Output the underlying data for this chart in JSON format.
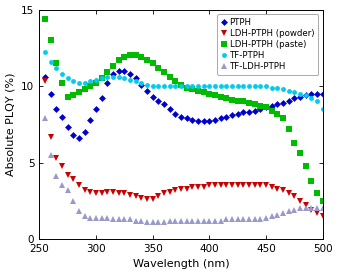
{
  "title": "",
  "xlabel": "Wavelength (nm)",
  "ylabel": "Absolute PLQY (%)",
  "xlim": [
    250,
    500
  ],
  "ylim": [
    0,
    15
  ],
  "yticks": [
    0,
    5,
    10,
    15
  ],
  "xticks": [
    250,
    300,
    350,
    400,
    450,
    500
  ],
  "background_color": "#ffffff",
  "series": {
    "PTPH": {
      "color": "#0000CC",
      "marker": "D",
      "ms": 3.5,
      "x": [
        255,
        260,
        265,
        270,
        275,
        280,
        285,
        290,
        295,
        300,
        305,
        310,
        315,
        320,
        325,
        330,
        335,
        340,
        345,
        350,
        355,
        360,
        365,
        370,
        375,
        380,
        385,
        390,
        395,
        400,
        405,
        410,
        415,
        420,
        425,
        430,
        435,
        440,
        445,
        450,
        455,
        460,
        465,
        470,
        475,
        480,
        485,
        490,
        495,
        500
      ],
      "y": [
        10.6,
        9.5,
        8.5,
        8.0,
        7.3,
        6.8,
        6.6,
        7.0,
        7.8,
        8.5,
        9.2,
        10.2,
        10.8,
        11.0,
        11.0,
        10.8,
        10.5,
        10.1,
        9.7,
        9.3,
        9.0,
        8.8,
        8.5,
        8.2,
        8.0,
        7.9,
        7.8,
        7.7,
        7.7,
        7.7,
        7.8,
        7.9,
        8.0,
        8.1,
        8.2,
        8.3,
        8.3,
        8.4,
        8.5,
        8.6,
        8.7,
        8.8,
        8.9,
        9.0,
        9.2,
        9.3,
        9.4,
        9.5,
        9.5,
        9.5
      ]
    },
    "LDH-PTPH (powder)": {
      "color": "#CC0000",
      "marker": "v",
      "ms": 4.5,
      "x": [
        255,
        260,
        265,
        270,
        275,
        280,
        285,
        290,
        295,
        300,
        305,
        310,
        315,
        320,
        325,
        330,
        335,
        340,
        345,
        350,
        355,
        360,
        365,
        370,
        375,
        380,
        385,
        390,
        395,
        400,
        405,
        410,
        415,
        420,
        425,
        430,
        435,
        440,
        445,
        450,
        455,
        460,
        465,
        470,
        475,
        480,
        485,
        490,
        495,
        500
      ],
      "y": [
        10.3,
        6.7,
        5.3,
        4.8,
        4.2,
        3.9,
        3.5,
        3.2,
        3.1,
        3.0,
        3.0,
        3.1,
        3.1,
        3.0,
        3.0,
        2.9,
        2.8,
        2.7,
        2.6,
        2.6,
        2.8,
        3.0,
        3.1,
        3.2,
        3.3,
        3.3,
        3.4,
        3.4,
        3.4,
        3.5,
        3.5,
        3.5,
        3.5,
        3.5,
        3.5,
        3.5,
        3.5,
        3.5,
        3.5,
        3.5,
        3.4,
        3.3,
        3.2,
        3.0,
        2.8,
        2.5,
        2.2,
        1.9,
        1.7,
        1.5
      ]
    },
    "LDH-PTPH (paste)": {
      "color": "#00BB00",
      "marker": "s",
      "ms": 4.0,
      "x": [
        255,
        260,
        265,
        270,
        275,
        280,
        285,
        290,
        295,
        300,
        305,
        310,
        315,
        320,
        325,
        330,
        335,
        340,
        345,
        350,
        355,
        360,
        365,
        370,
        375,
        380,
        385,
        390,
        395,
        400,
        405,
        410,
        415,
        420,
        425,
        430,
        435,
        440,
        445,
        450,
        455,
        460,
        465,
        470,
        475,
        480,
        485,
        490,
        495,
        500
      ],
      "y": [
        14.4,
        13.0,
        11.5,
        10.2,
        9.3,
        9.4,
        9.6,
        9.8,
        10.0,
        10.2,
        10.5,
        10.9,
        11.3,
        11.7,
        11.9,
        12.0,
        12.0,
        11.9,
        11.7,
        11.5,
        11.2,
        10.9,
        10.6,
        10.3,
        10.1,
        9.9,
        9.8,
        9.7,
        9.6,
        9.5,
        9.4,
        9.3,
        9.2,
        9.1,
        9.0,
        9.0,
        8.9,
        8.8,
        8.7,
        8.6,
        8.4,
        8.2,
        7.9,
        7.2,
        6.3,
        5.6,
        4.8,
        3.8,
        3.0,
        2.5
      ]
    },
    "TF-PTPH": {
      "color": "#00CCEE",
      "marker": "o",
      "ms": 3.5,
      "x": [
        255,
        260,
        265,
        270,
        275,
        280,
        285,
        290,
        295,
        300,
        305,
        310,
        315,
        320,
        325,
        330,
        335,
        340,
        345,
        350,
        355,
        360,
        365,
        370,
        375,
        380,
        385,
        390,
        395,
        400,
        405,
        410,
        415,
        420,
        425,
        430,
        435,
        440,
        445,
        450,
        455,
        460,
        465,
        470,
        475,
        480,
        485,
        490,
        495,
        500
      ],
      "y": [
        12.2,
        11.6,
        11.2,
        10.8,
        10.5,
        10.3,
        10.2,
        10.2,
        10.3,
        10.4,
        10.5,
        10.6,
        10.6,
        10.6,
        10.5,
        10.4,
        10.3,
        10.2,
        10.1,
        10.0,
        10.0,
        10.0,
        10.0,
        10.0,
        10.0,
        10.0,
        10.0,
        10.0,
        10.0,
        10.0,
        10.0,
        10.0,
        10.0,
        10.0,
        10.0,
        10.0,
        10.0,
        10.0,
        10.0,
        10.0,
        9.9,
        9.9,
        9.8,
        9.7,
        9.6,
        9.5,
        9.4,
        9.2,
        9.0,
        8.5
      ]
    },
    "TF-LDH-PTPH": {
      "color": "#9999CC",
      "marker": "^",
      "ms": 4.0,
      "x": [
        255,
        260,
        265,
        270,
        275,
        280,
        285,
        290,
        295,
        300,
        305,
        310,
        315,
        320,
        325,
        330,
        335,
        340,
        345,
        350,
        355,
        360,
        365,
        370,
        375,
        380,
        385,
        390,
        395,
        400,
        405,
        410,
        415,
        420,
        425,
        430,
        435,
        440,
        445,
        450,
        455,
        460,
        465,
        470,
        475,
        480,
        485,
        490,
        495,
        500
      ],
      "y": [
        7.9,
        5.5,
        4.1,
        3.5,
        3.2,
        2.5,
        1.8,
        1.5,
        1.4,
        1.4,
        1.4,
        1.4,
        1.3,
        1.3,
        1.3,
        1.3,
        1.2,
        1.2,
        1.1,
        1.1,
        1.1,
        1.1,
        1.2,
        1.2,
        1.2,
        1.2,
        1.2,
        1.2,
        1.2,
        1.2,
        1.2,
        1.2,
        1.3,
        1.3,
        1.3,
        1.3,
        1.3,
        1.3,
        1.3,
        1.4,
        1.5,
        1.6,
        1.7,
        1.8,
        1.9,
        2.0,
        2.0,
        2.0,
        2.0,
        2.0
      ]
    }
  },
  "legend_order": [
    "PTPH",
    "LDH-PTPH (powder)",
    "LDH-PTPH (paste)",
    "TF-PTPH",
    "TF-LDH-PTPH"
  ]
}
